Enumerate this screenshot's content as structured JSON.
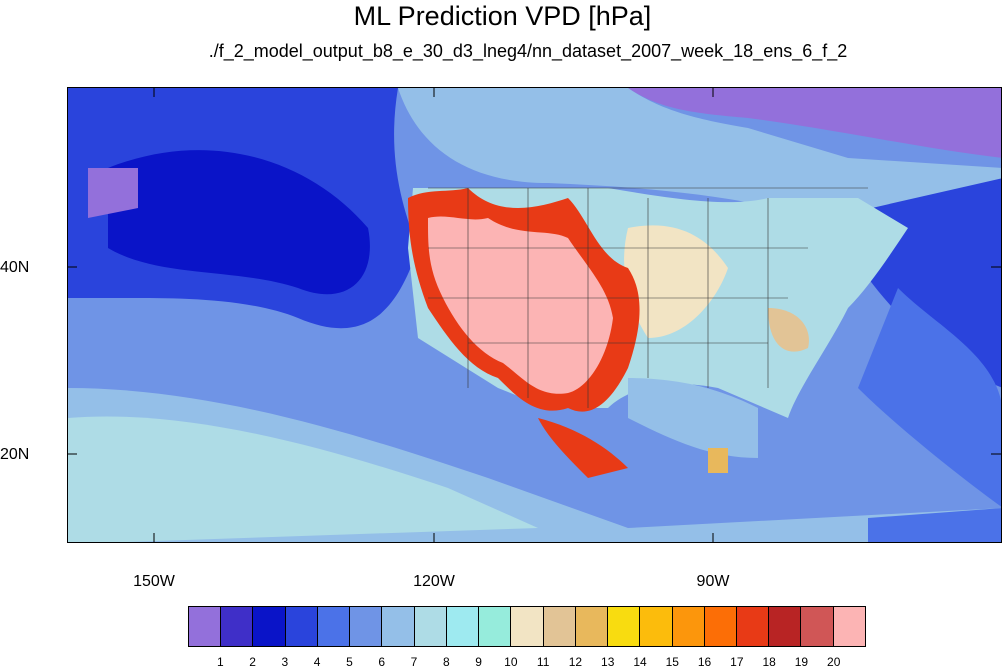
{
  "title": "ML Prediction VPD [hPa]",
  "subtitle": "./f_2_model_output_b8_e_30_d3_lneg4/nn_dataset_2007_week_18_ens_6_f_2",
  "axes": {
    "lat_labels": [
      "40N",
      "20N"
    ],
    "lon_labels": [
      "150W",
      "120W",
      "90W"
    ]
  },
  "colorbar": {
    "labels": [
      "1",
      "2",
      "3",
      "4",
      "5",
      "6",
      "7",
      "8",
      "9",
      "10",
      "11",
      "12",
      "13",
      "14",
      "15",
      "16",
      "17",
      "18",
      "19",
      "20"
    ],
    "colors": [
      "#9370db",
      "#3f2fc8",
      "#0a14c8",
      "#2a44dc",
      "#4b72e8",
      "#6f94e6",
      "#94bfe8",
      "#aedce6",
      "#9eeaf0",
      "#96ecdc",
      "#f2e4c4",
      "#e2c496",
      "#e8b85c",
      "#f8dc10",
      "#fcbc0c",
      "#fc960c",
      "#fc6e06",
      "#e83a16",
      "#b82424",
      "#d05656",
      "#fcb4b4"
    ]
  },
  "regions": {
    "deep_ocean": "level-4",
    "pacific_mid": "level-6",
    "southwest_desert": "level-21",
    "great_plains": "level-11"
  }
}
